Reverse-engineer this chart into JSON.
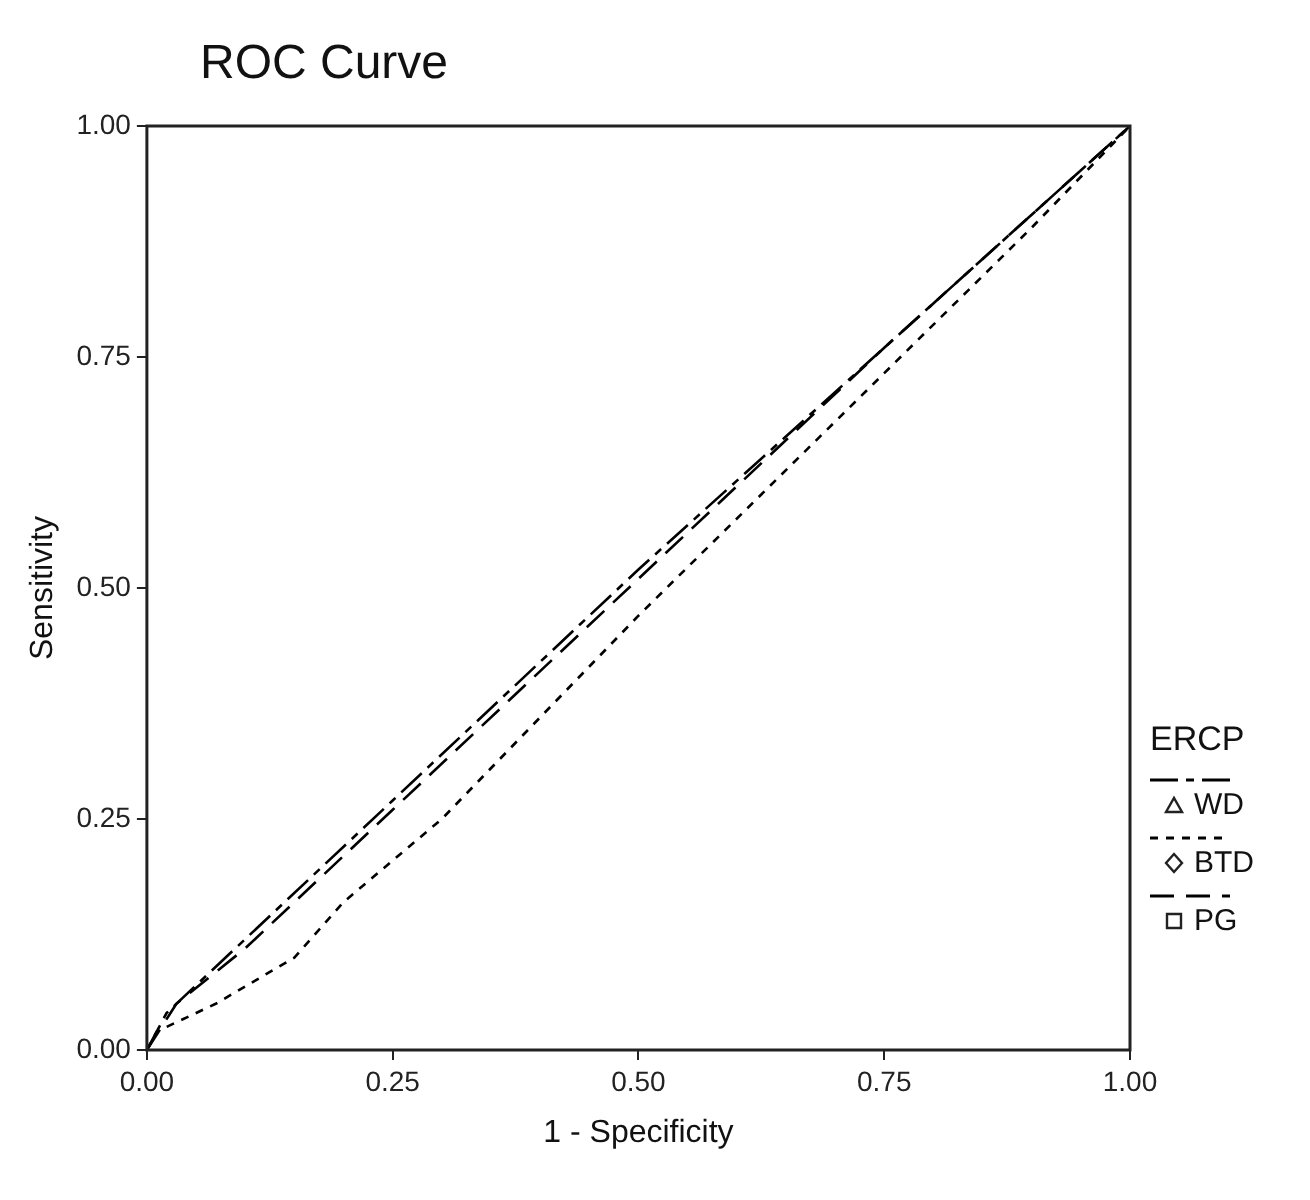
{
  "chart_data": {
    "type": "line",
    "title": "ROC Curve",
    "xlabel": "1 - Specificity",
    "ylabel": "Sensitivity",
    "legend_title": "ERCP",
    "xlim": [
      0,
      1
    ],
    "ylim": [
      0,
      1
    ],
    "xticks": [
      {
        "value": 0,
        "label": "0.00"
      },
      {
        "value": 0.25,
        "label": "0.25"
      },
      {
        "value": 0.5,
        "label": "0.50"
      },
      {
        "value": 0.75,
        "label": "0.75"
      },
      {
        "value": 1,
        "label": "1.00"
      }
    ],
    "yticks": [
      {
        "value": 0,
        "label": "0.00"
      },
      {
        "value": 0.25,
        "label": "0.25"
      },
      {
        "value": 0.5,
        "label": "0.50"
      },
      {
        "value": 0.75,
        "label": "0.75"
      },
      {
        "value": 1,
        "label": "1.00"
      }
    ],
    "grid": false,
    "legend": "right",
    "marker": "none",
    "series": [
      {
        "name": "WD",
        "color": "#000000",
        "line_style": "dashdot",
        "x": [
          0,
          0.02,
          0.1,
          0.25,
          0.5,
          0.75,
          1
        ],
        "values": [
          0,
          0.04,
          0.12,
          0.27,
          0.52,
          0.76,
          1
        ]
      },
      {
        "name": "BTD",
        "color": "#000000",
        "line_style": "dotted",
        "x": [
          0,
          0.01,
          0.07,
          0.15,
          0.2,
          0.3,
          0.5,
          0.7,
          0.9,
          1
        ],
        "values": [
          0,
          0.02,
          0.05,
          0.1,
          0.16,
          0.25,
          0.47,
          0.68,
          0.89,
          1
        ]
      },
      {
        "name": "PG",
        "color": "#000000",
        "line_style": "dashed",
        "x": [
          0,
          0.03,
          0.1,
          0.25,
          0.5,
          0.75,
          1
        ],
        "values": [
          0,
          0.05,
          0.11,
          0.26,
          0.51,
          0.76,
          1
        ]
      }
    ]
  }
}
